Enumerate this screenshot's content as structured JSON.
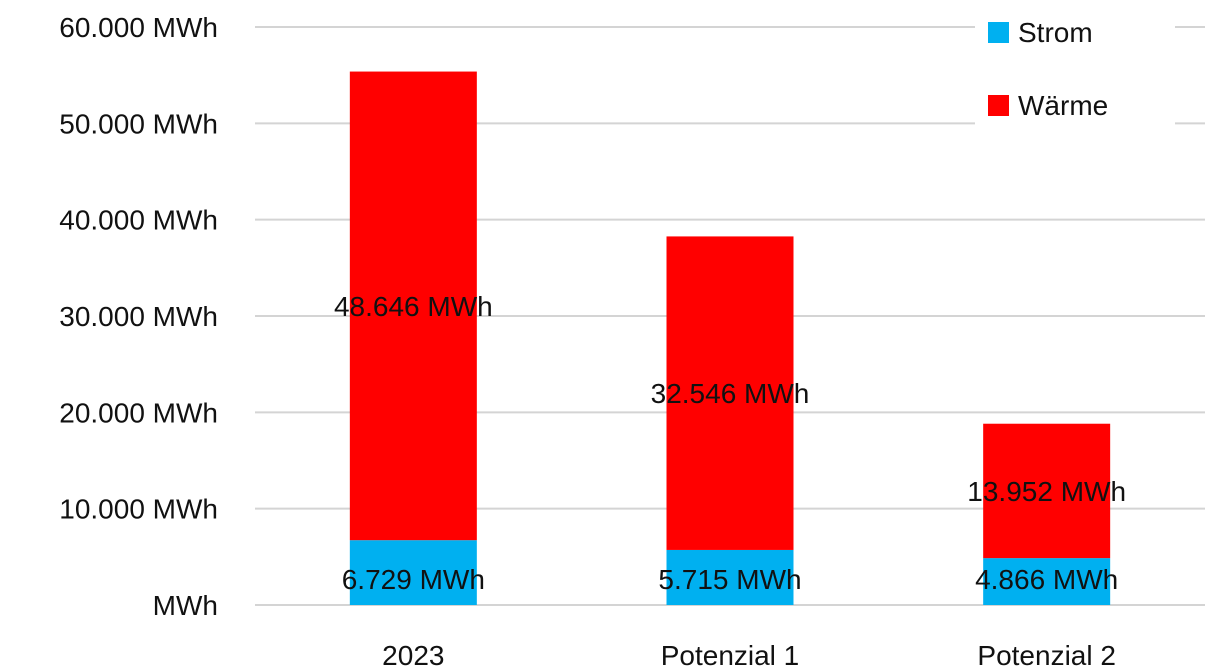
{
  "chart_data": {
    "type": "bar",
    "stacked": true,
    "categories": [
      "2023",
      "Potenzial 1",
      "Potenzial 2"
    ],
    "series": [
      {
        "name": "Strom",
        "color": "#00B0F0",
        "values": [
          6729,
          5715,
          4866
        ],
        "labels": [
          "6.729 MWh",
          "5.715 MWh",
          "4.866 MWh"
        ]
      },
      {
        "name": "Wärme",
        "color": "#FF0000",
        "values": [
          48646,
          32546,
          13952
        ],
        "labels": [
          "48.646 MWh",
          "32.546 MWh",
          "13.952 MWh"
        ]
      }
    ],
    "ylim": [
      0,
      60000
    ],
    "yticks": [
      0,
      10000,
      20000,
      30000,
      40000,
      50000,
      60000
    ],
    "ytick_labels": [
      "MWh",
      "10.000 MWh",
      "20.000 MWh",
      "30.000 MWh",
      "40.000 MWh",
      "50.000 MWh",
      "60.000 MWh"
    ],
    "grid": true,
    "legend_position": "top-right",
    "title": "",
    "xlabel": "",
    "ylabel": ""
  }
}
